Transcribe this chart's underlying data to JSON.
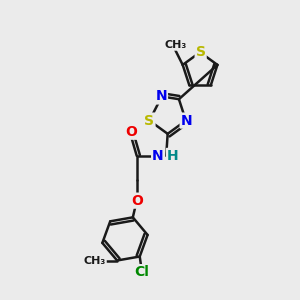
{
  "bg_color": "#ebebeb",
  "bond_color": "#1a1a1a",
  "bond_width": 1.8,
  "atom_colors": {
    "S": "#b8b800",
    "N": "#0000ee",
    "O": "#ee0000",
    "Cl": "#008800",
    "C": "#1a1a1a",
    "H": "#008888"
  },
  "font_size": 10,
  "fig_size": [
    3.0,
    3.0
  ],
  "dpi": 100
}
